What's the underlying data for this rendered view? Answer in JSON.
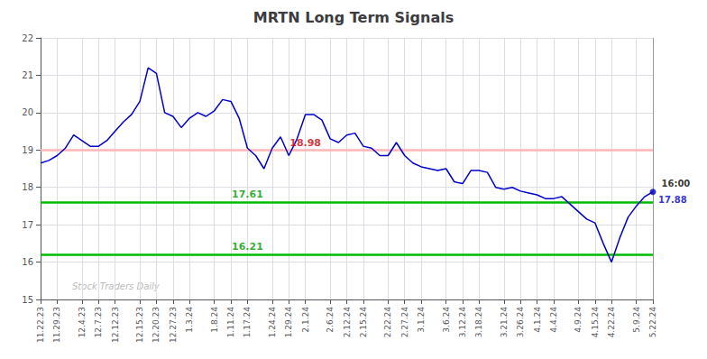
{
  "chart_data": {
    "type": "line",
    "title": "MRTN Long Term Signals",
    "categories": [
      "11.22.23",
      null,
      "11.29.23",
      null,
      null,
      "12.4.23",
      null,
      "12.7.23",
      null,
      "12.12.23",
      null,
      null,
      "12.15.23",
      null,
      "12.20.23",
      null,
      "12.27.23",
      null,
      "1.3.24",
      null,
      null,
      "1.8.24",
      null,
      "1.11.24",
      null,
      "1.17.24",
      null,
      null,
      "1.24.24",
      null,
      "1.29.24",
      null,
      "2.1.24",
      null,
      null,
      "2.6.24",
      null,
      "2.12.24",
      null,
      "2.15.24",
      null,
      null,
      "2.22.24",
      null,
      "2.27.24",
      null,
      "3.1.24",
      null,
      null,
      "3.6.24",
      null,
      "3.12.24",
      null,
      "3.18.24",
      null,
      null,
      "3.21.24",
      null,
      "3.26.24",
      null,
      "4.1.24",
      null,
      "4.4.24",
      null,
      null,
      "4.9.24",
      null,
      "4.15.24",
      null,
      "4.22.24",
      null,
      null,
      "5.9.24",
      null,
      "5.22.24"
    ],
    "values": [
      18.65,
      18.72,
      18.85,
      19.05,
      19.4,
      19.25,
      19.1,
      19.1,
      19.25,
      19.5,
      19.75,
      19.95,
      20.3,
      21.2,
      21.05,
      20.0,
      19.9,
      19.6,
      19.85,
      20.0,
      19.9,
      20.05,
      20.35,
      20.3,
      19.85,
      19.05,
      18.85,
      18.5,
      19.05,
      19.35,
      18.85,
      19.3,
      19.95,
      19.95,
      19.8,
      19.3,
      19.2,
      19.4,
      19.45,
      19.1,
      19.05,
      18.85,
      18.85,
      19.2,
      18.85,
      18.65,
      18.55,
      18.5,
      18.45,
      18.5,
      18.15,
      18.1,
      18.45,
      18.45,
      18.4,
      18.0,
      17.95,
      18.0,
      17.9,
      17.85,
      17.8,
      17.7,
      17.7,
      17.75,
      17.55,
      17.35,
      17.15,
      17.05,
      16.5,
      16.0,
      16.65,
      17.2,
      17.5,
      17.75,
      17.88
    ],
    "color": "#0000cc",
    "ylim": [
      15,
      22
    ],
    "yticks": [
      15,
      16,
      17,
      18,
      19,
      20,
      21,
      22
    ],
    "grid": true,
    "hlines": [
      {
        "y": 19.0,
        "color": "#ffb6b6"
      },
      {
        "y": 17.61,
        "color": "#00bb00"
      },
      {
        "y": 16.21,
        "color": "#00bb00"
      }
    ],
    "annotations": [
      {
        "text": "18.98",
        "x": "2.1.24",
        "y": 18.98,
        "color": "#cc0000"
      },
      {
        "text": "17.61",
        "x": "1.17.24",
        "y": 17.61,
        "color": "#009900"
      },
      {
        "text": "16.21",
        "x": "1.17.24",
        "y": 16.21,
        "color": "#009900"
      }
    ],
    "end_labels": [
      {
        "text": "16:00",
        "color": "#000000"
      },
      {
        "text": "17.88",
        "color": "#0000cc"
      }
    ],
    "watermark": "Stock Traders Daily"
  }
}
